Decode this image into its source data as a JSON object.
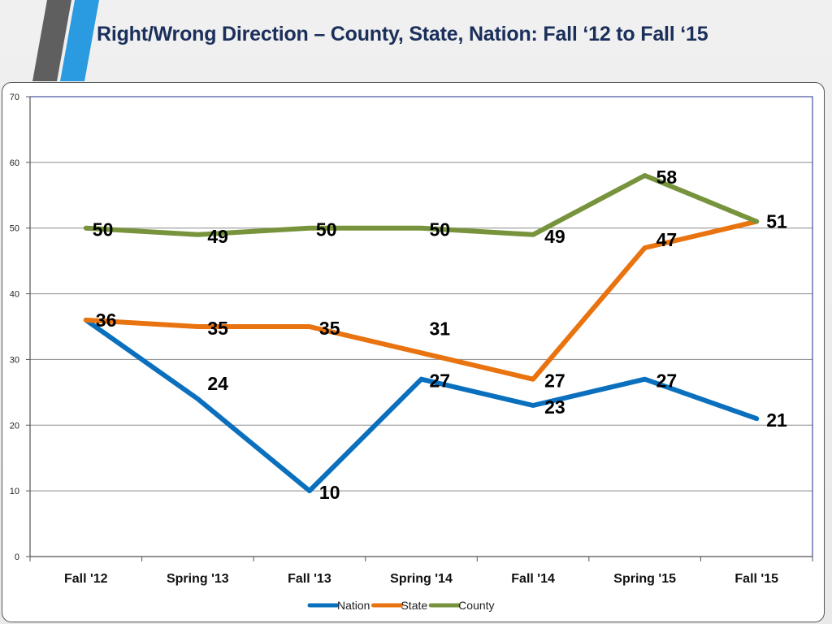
{
  "slide": {
    "title": "Right/Wrong Direction – County, State, Nation: Fall ‘12 to Fall ‘15"
  },
  "chart_data": {
    "type": "line",
    "title": "",
    "xlabel": "",
    "ylabel": "",
    "categories": [
      "Fall '12",
      "Spring '13",
      "Fall '13",
      "Spring '14",
      "Fall '14",
      "Spring '15",
      "Fall '15"
    ],
    "ylim": [
      0,
      70
    ],
    "yticks": [
      0,
      10,
      20,
      30,
      40,
      50,
      60,
      70
    ],
    "grid": true,
    "legend_position": "bottom",
    "series": [
      {
        "name": "Nation",
        "color": "#0a70be",
        "values": [
          36,
          24,
          10,
          27,
          23,
          27,
          21
        ]
      },
      {
        "name": "State",
        "color": "#e8730f",
        "values": [
          36,
          35,
          35,
          31,
          27,
          47,
          51
        ]
      },
      {
        "name": "County",
        "color": "#77933c",
        "values": [
          50,
          49,
          50,
          50,
          49,
          58,
          51
        ]
      }
    ],
    "data_labels": [
      {
        "series": "Nation",
        "values": [
          "36",
          "24",
          "10",
          "27",
          "23",
          "27",
          "21"
        ]
      },
      {
        "series": "State",
        "values": [
          "",
          "35",
          "35",
          "31",
          "27",
          "47",
          "51"
        ]
      },
      {
        "series": "County",
        "values": [
          "50",
          "49",
          "50",
          "50",
          "49",
          "58",
          ""
        ]
      }
    ]
  }
}
